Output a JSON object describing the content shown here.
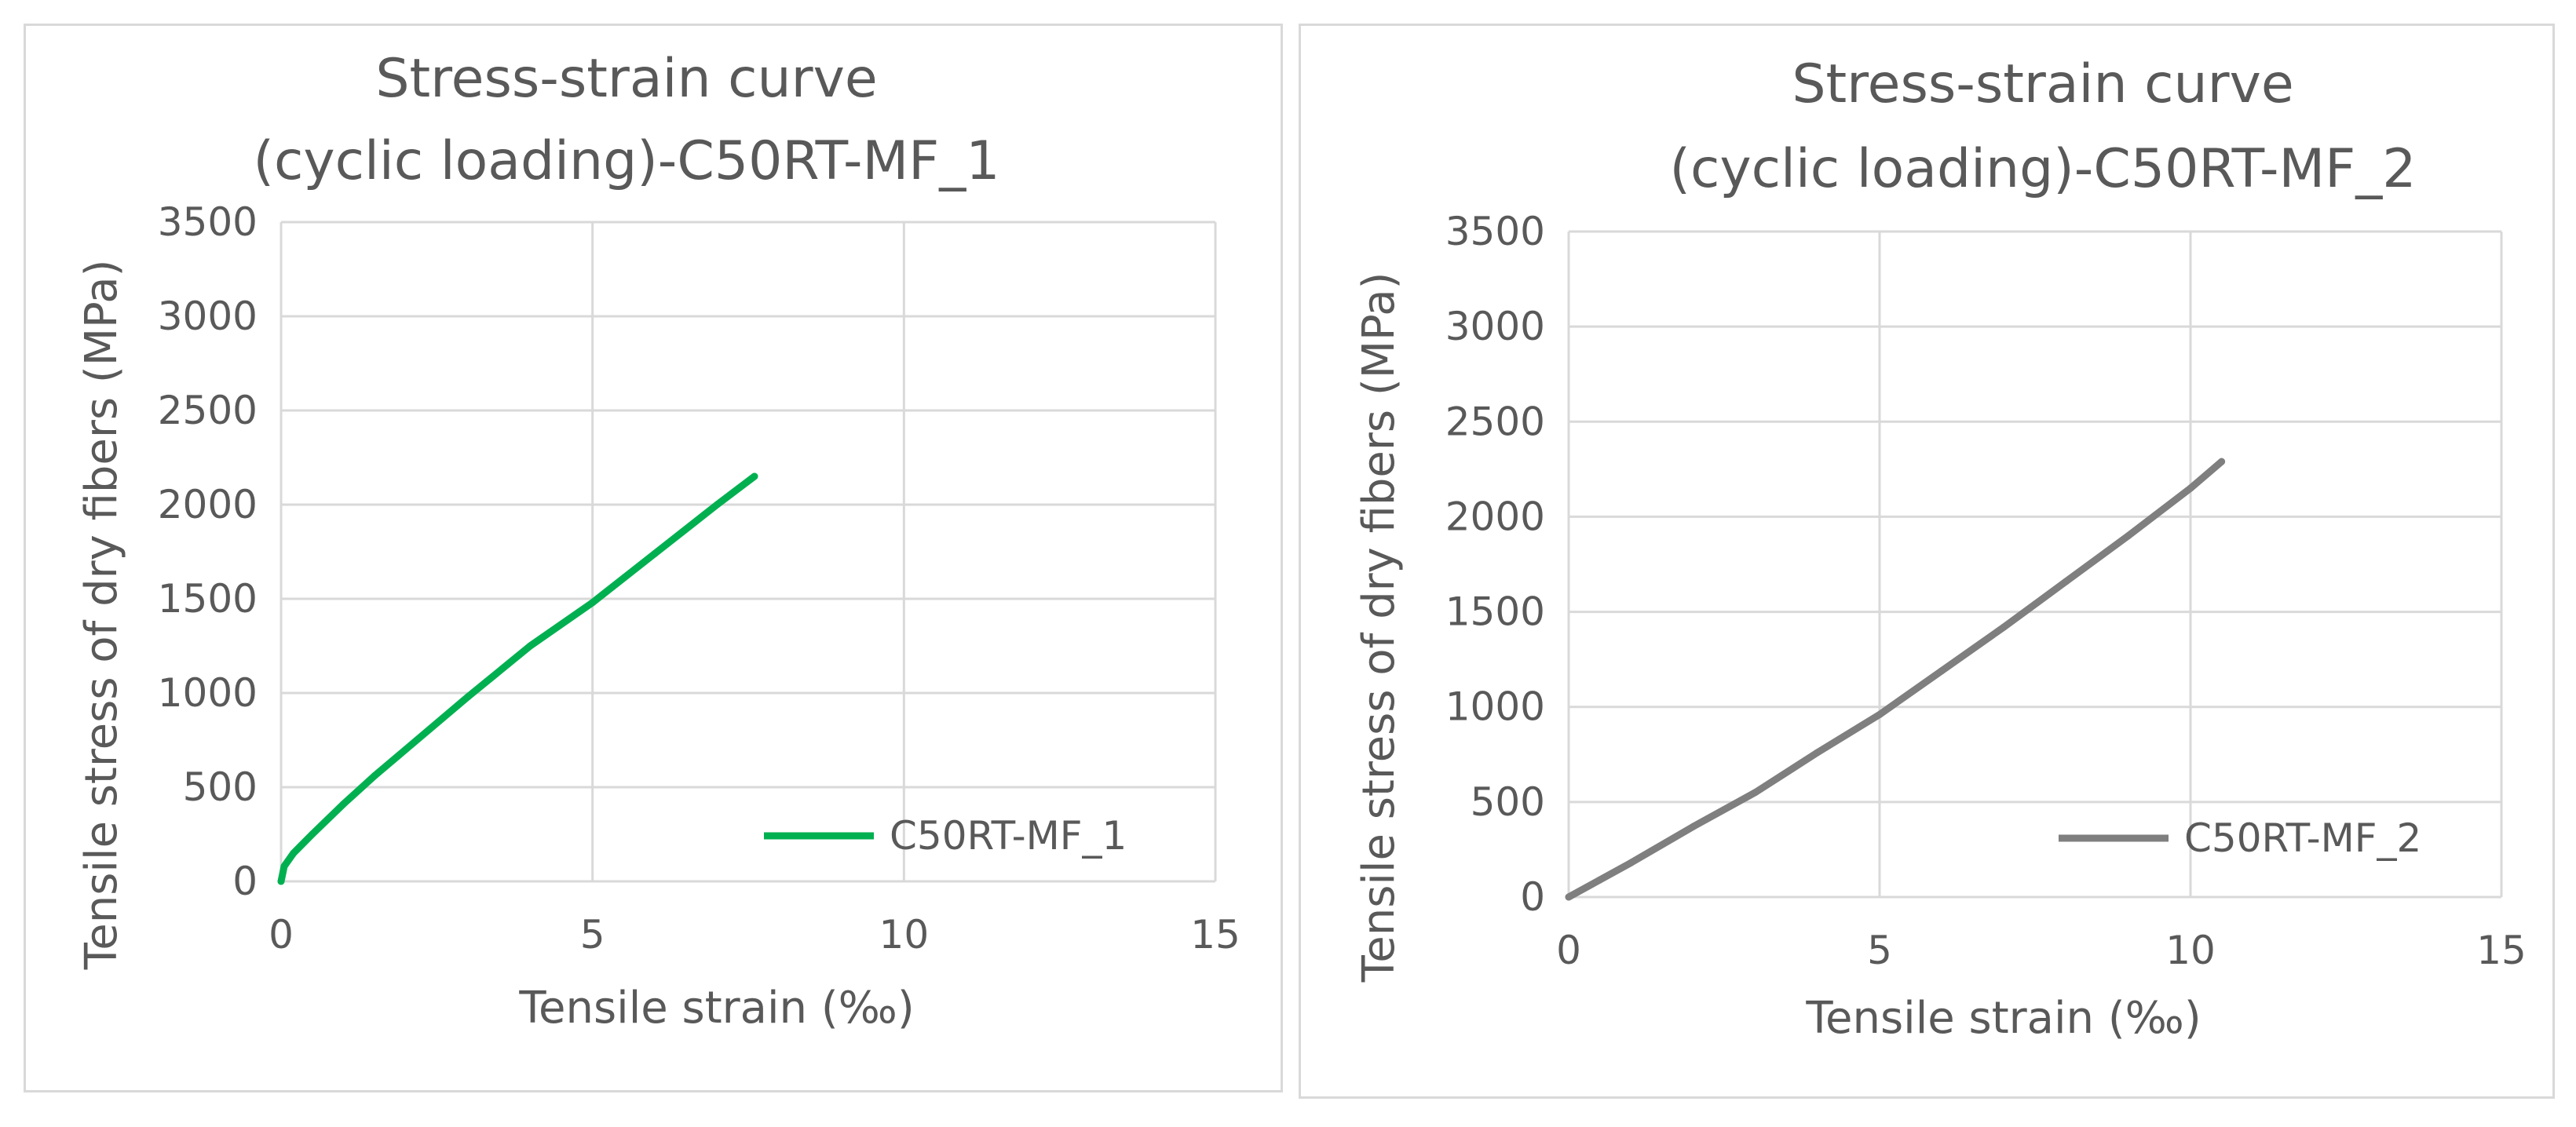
{
  "chart_data": [
    {
      "type": "line",
      "title_lines": [
        "Stress-strain curve",
        "(cyclic loading)-C50RT-MF_1"
      ],
      "xlabel": "Tensile strain (‰)",
      "ylabel": "Tensile stress of dry fibers (MPa)",
      "xlim": [
        0,
        15
      ],
      "ylim": [
        0,
        3500
      ],
      "xticks": [
        "0",
        "5",
        "10",
        "15"
      ],
      "yticks": [
        "0",
        "500",
        "1000",
        "1500",
        "2000",
        "2500",
        "3000",
        "3500"
      ],
      "grid": true,
      "legend_position": "bottom-right",
      "series": [
        {
          "name": "C50RT-MF_1",
          "color": "#00b050",
          "x": [
            0,
            0.05,
            0.2,
            0.5,
            1.0,
            1.5,
            2.0,
            3.0,
            4.0,
            5.0,
            6.0,
            7.0,
            7.6
          ],
          "y": [
            0,
            80,
            150,
            250,
            410,
            560,
            700,
            980,
            1250,
            1480,
            1740,
            2000,
            2150
          ]
        }
      ]
    },
    {
      "type": "line",
      "title_lines": [
        "Stress-strain curve",
        "(cyclic loading)-C50RT-MF_2"
      ],
      "xlabel": "Tensile strain (‰)",
      "ylabel": "Tensile stress of dry fibers (MPa)",
      "xlim": [
        0,
        15
      ],
      "ylim": [
        0,
        3500
      ],
      "xticks": [
        "0",
        "5",
        "10",
        "15"
      ],
      "yticks": [
        "0",
        "500",
        "1000",
        "1500",
        "2000",
        "2500",
        "3000",
        "3500"
      ],
      "grid": true,
      "legend_position": "bottom-right",
      "series": [
        {
          "name": "C50RT-MF_2",
          "color": "#7f7f7f",
          "x": [
            0,
            0.5,
            1.0,
            2.0,
            3.0,
            4.0,
            5.0,
            6.0,
            7.0,
            8.0,
            9.0,
            10.0,
            10.5
          ],
          "y": [
            0,
            90,
            180,
            370,
            550,
            760,
            960,
            1190,
            1420,
            1660,
            1900,
            2150,
            2290
          ]
        }
      ]
    }
  ]
}
